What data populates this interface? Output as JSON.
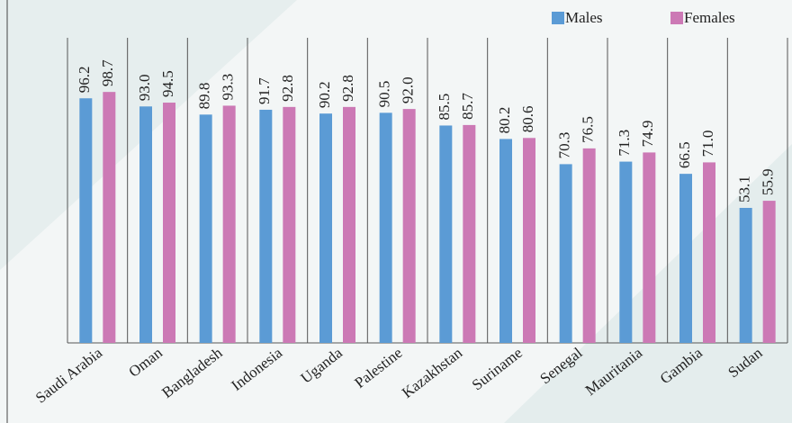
{
  "chart_data": {
    "type": "bar",
    "categories": [
      "Saudi Arabia",
      "Oman",
      "Bangladesh",
      "Indonesia",
      "Uganda",
      "Palestine",
      "Kazakhstan",
      "Suriname",
      "Senegal",
      "Mauritania",
      "Gambia",
      "Sudan"
    ],
    "series": [
      {
        "name": "Males",
        "color": "#5b9bd5",
        "values": [
          96.2,
          93.0,
          89.8,
          91.7,
          90.2,
          90.5,
          85.5,
          80.2,
          70.3,
          71.3,
          66.5,
          53.1
        ],
        "value_labels": [
          "96.2",
          "93.0",
          "89.8",
          "91.7",
          "90.2",
          "90.5",
          "85.5",
          "80.2",
          "70.3",
          "71.3",
          "66.5",
          "53.1"
        ]
      },
      {
        "name": "Females",
        "color": "#cc79b5",
        "values": [
          98.7,
          94.5,
          93.3,
          92.8,
          92.8,
          92.0,
          85.7,
          80.6,
          76.5,
          74.9,
          71.0,
          55.9
        ],
        "value_labels": [
          "98.7",
          "94.5",
          "93.3",
          "92.8",
          "92.8",
          "92.0",
          "85.7",
          "80.6",
          "76.5",
          "74.9",
          "71.0",
          "55.9"
        ]
      }
    ],
    "ylim": [
      0,
      120
    ],
    "legend": "top-right"
  }
}
